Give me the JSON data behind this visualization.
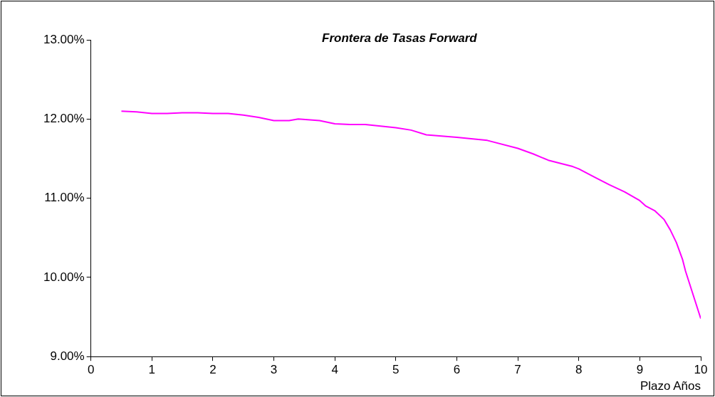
{
  "chart_data": {
    "type": "line",
    "title": "Frontera de Tasas Forward",
    "xlabel": "Plazo Años",
    "x": [
      0.5,
      0.75,
      1,
      1.25,
      1.5,
      1.75,
      2,
      2.25,
      2.5,
      2.75,
      3,
      3.25,
      3.4,
      3.75,
      4,
      4.25,
      4.5,
      4.75,
      5,
      5.25,
      5.5,
      6,
      6.5,
      7,
      7.25,
      7.5,
      7.75,
      7.9,
      8,
      8.25,
      8.5,
      8.75,
      9,
      9.1,
      9.25,
      9.4,
      9.5,
      9.6,
      9.7,
      9.75,
      10
    ],
    "series": [
      {
        "color": "#ff00ff",
        "values": [
          12.1,
          12.09,
          12.07,
          12.07,
          12.08,
          12.08,
          12.07,
          12.07,
          12.05,
          12.02,
          11.98,
          11.98,
          12.0,
          11.98,
          11.94,
          11.93,
          11.93,
          11.91,
          11.89,
          11.86,
          11.8,
          11.77,
          11.73,
          11.63,
          11.56,
          11.48,
          11.43,
          11.4,
          11.37,
          11.27,
          11.17,
          11.08,
          10.97,
          10.9,
          10.84,
          10.73,
          10.6,
          10.44,
          10.23,
          10.08,
          9.48
        ]
      }
    ],
    "xlim": [
      0,
      10
    ],
    "xticks": [
      0,
      1,
      2,
      3,
      4,
      5,
      6,
      7,
      8,
      9,
      10
    ],
    "ylim": [
      9,
      13
    ],
    "yticks": [
      {
        "value": 9,
        "label": "9.00%"
      },
      {
        "value": 10,
        "label": "10.00%"
      },
      {
        "value": 11,
        "label": "11.00%"
      },
      {
        "value": 12,
        "label": "12.00%"
      },
      {
        "value": 13,
        "label": "13.00%"
      }
    ],
    "grid": false,
    "legend": false,
    "marker": "none",
    "line_style": "solid"
  }
}
